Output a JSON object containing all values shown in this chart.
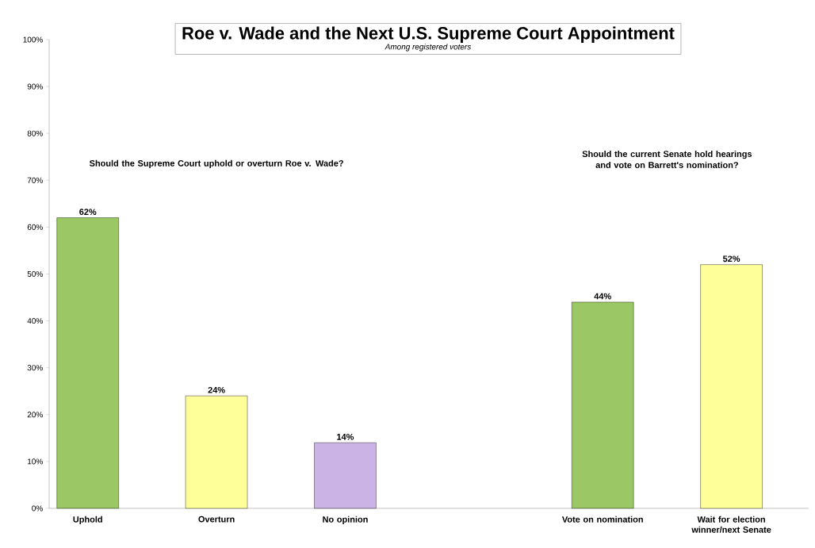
{
  "chart_data": {
    "type": "bar",
    "title": "Roe v. Wade and the Next U.S. Supreme Court Appointment",
    "subtitle": "*Among registered voters*",
    "categories": [
      "Uphold",
      "Overturn",
      "No opinion",
      null,
      "Vote on nomination",
      "Wait for election winner/next Senate"
    ],
    "values": [
      62,
      24,
      14,
      null,
      44,
      52
    ],
    "colors": [
      "#9bc864",
      "#ffff99",
      "#ccb3e6",
      null,
      "#9bc864",
      "#ffff99"
    ],
    "value_labels": [
      "62%",
      "24%",
      "14%",
      null,
      "44%",
      "52%"
    ],
    "annotations": [
      "Should the Supreme Court uphold or overturn Roe v. Wade?",
      "Should the current Senate hold hearings and vote on Barrett's nomination?"
    ],
    "ylim": [
      0,
      100
    ],
    "yticks": [
      {
        "value": 0,
        "label": "0%"
      },
      {
        "value": 10,
        "label": "10%"
      },
      {
        "value": 20,
        "label": "20%"
      },
      {
        "value": 30,
        "label": "30%"
      },
      {
        "value": 40,
        "label": "40%"
      },
      {
        "value": 50,
        "label": "50%"
      },
      {
        "value": 60,
        "label": "60%"
      },
      {
        "value": 70,
        "label": "70%"
      },
      {
        "value": 80,
        "label": "80%"
      },
      {
        "value": 90,
        "label": "90%"
      },
      {
        "value": 100,
        "label": "100%"
      }
    ],
    "grid": false
  }
}
